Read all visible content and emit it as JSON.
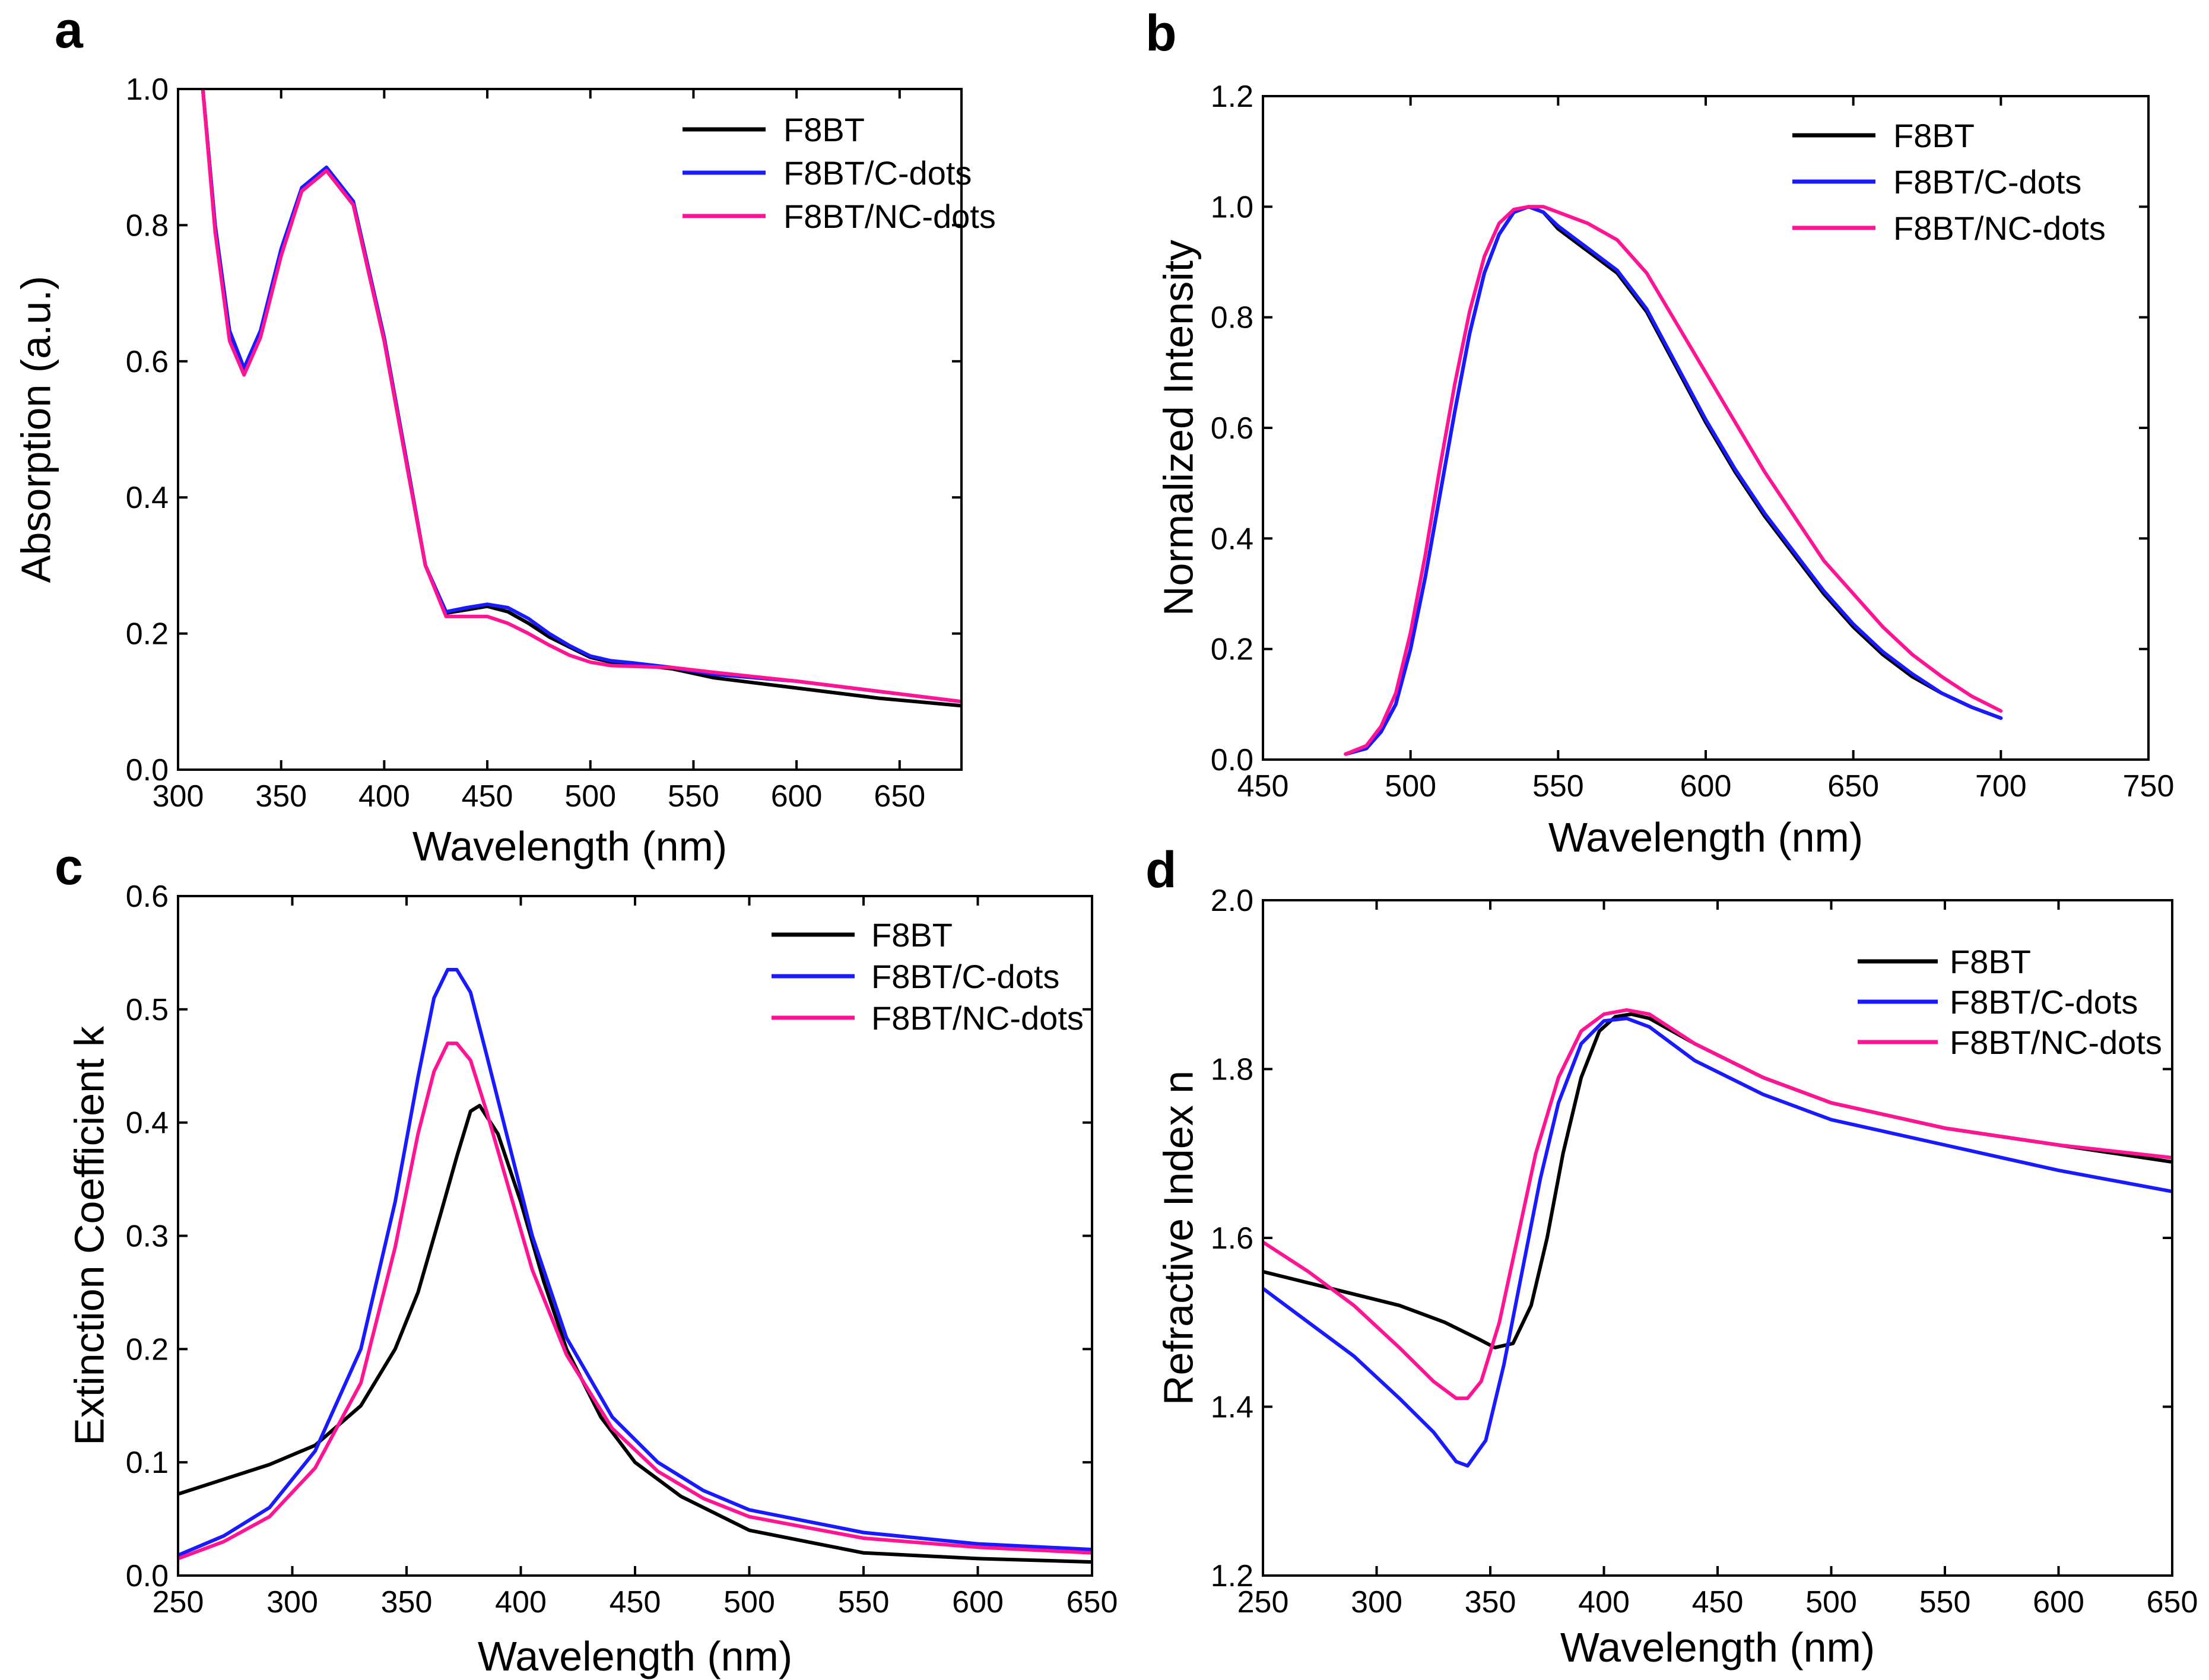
{
  "chart_data": [
    {
      "panel": "a",
      "type": "line",
      "xlabel": "Wavelength (nm)",
      "ylabel": "Absorption (a.u.)",
      "xlim": [
        300,
        680
      ],
      "ylim": [
        0.0,
        1.0
      ],
      "xticks": [
        300,
        350,
        400,
        450,
        500,
        550,
        600,
        650
      ],
      "xtick_labels": [
        "300",
        "350",
        "400",
        "450",
        "500",
        "550",
        "600",
        "650"
      ],
      "yticks": [
        0.0,
        0.2,
        0.4,
        0.6,
        0.8,
        1.0
      ],
      "ytick_labels": [
        "0.0",
        "0.2",
        "0.4",
        "0.6",
        "0.8",
        "1.0"
      ],
      "legend": "top-right",
      "series": [
        {
          "name": "F8BT",
          "color": "#000000",
          "x": [
            312,
            318,
            325,
            332,
            340,
            350,
            360,
            372,
            385,
            400,
            412,
            420,
            430,
            440,
            450,
            460,
            470,
            480,
            490,
            500,
            510,
            520,
            540,
            560,
            600,
            640,
            680
          ],
          "y": [
            1.0,
            0.8,
            0.64,
            0.585,
            0.64,
            0.76,
            0.85,
            0.88,
            0.83,
            0.63,
            0.43,
            0.3,
            0.23,
            0.235,
            0.24,
            0.232,
            0.215,
            0.195,
            0.18,
            0.165,
            0.158,
            0.155,
            0.148,
            0.135,
            0.12,
            0.105,
            0.094
          ]
        },
        {
          "name": "F8BT/C-dots",
          "color": "#1a1aff",
          "x": [
            312,
            318,
            325,
            332,
            340,
            350,
            360,
            372,
            385,
            400,
            412,
            420,
            430,
            440,
            450,
            460,
            470,
            480,
            490,
            500,
            510,
            520,
            540,
            560,
            600,
            640,
            680
          ],
          "y": [
            1.0,
            0.8,
            0.645,
            0.59,
            0.645,
            0.765,
            0.855,
            0.885,
            0.835,
            0.635,
            0.435,
            0.3,
            0.232,
            0.238,
            0.243,
            0.238,
            0.222,
            0.2,
            0.182,
            0.167,
            0.16,
            0.157,
            0.15,
            0.14,
            0.13,
            0.115,
            0.1
          ]
        },
        {
          "name": "F8BT/NC-dots",
          "color": "#ff1493",
          "x": [
            312,
            318,
            325,
            332,
            340,
            350,
            360,
            372,
            385,
            400,
            412,
            420,
            430,
            440,
            450,
            460,
            470,
            480,
            490,
            500,
            510,
            520,
            540,
            560,
            600,
            640,
            680
          ],
          "y": [
            1.0,
            0.79,
            0.63,
            0.58,
            0.635,
            0.755,
            0.85,
            0.88,
            0.83,
            0.63,
            0.43,
            0.3,
            0.225,
            0.225,
            0.225,
            0.215,
            0.2,
            0.183,
            0.168,
            0.158,
            0.153,
            0.152,
            0.15,
            0.143,
            0.13,
            0.115,
            0.1
          ]
        }
      ]
    },
    {
      "panel": "b",
      "type": "line",
      "xlabel": "Wavelength (nm)",
      "ylabel": "Normalized Intensity",
      "xlim": [
        450,
        750
      ],
      "ylim": [
        0.0,
        1.2
      ],
      "xticks": [
        450,
        500,
        550,
        600,
        650,
        700,
        750
      ],
      "xtick_labels": [
        "450",
        "500",
        "550",
        "600",
        "650",
        "700",
        "750"
      ],
      "yticks": [
        0.0,
        0.2,
        0.4,
        0.6,
        0.8,
        1.0,
        1.2
      ],
      "ytick_labels": [
        "0.0",
        "0.2",
        "0.4",
        "0.6",
        "0.8",
        "1.0",
        "1.2"
      ],
      "legend": "top-right",
      "series": [
        {
          "name": "F8BT",
          "color": "#000000",
          "x": [
            478,
            485,
            490,
            495,
            500,
            505,
            510,
            515,
            520,
            525,
            530,
            535,
            540,
            545,
            550,
            560,
            570,
            580,
            590,
            600,
            610,
            620,
            630,
            640,
            650,
            660,
            670,
            680,
            690,
            700
          ],
          "y": [
            0.01,
            0.02,
            0.05,
            0.1,
            0.2,
            0.33,
            0.48,
            0.63,
            0.77,
            0.88,
            0.95,
            0.99,
            1.0,
            0.99,
            0.96,
            0.92,
            0.88,
            0.81,
            0.71,
            0.61,
            0.52,
            0.44,
            0.37,
            0.3,
            0.24,
            0.19,
            0.15,
            0.12,
            0.095,
            0.075
          ]
        },
        {
          "name": "F8BT/C-dots",
          "color": "#1a1aff",
          "x": [
            478,
            485,
            490,
            495,
            500,
            505,
            510,
            515,
            520,
            525,
            530,
            535,
            540,
            545,
            550,
            560,
            570,
            580,
            590,
            600,
            610,
            620,
            630,
            640,
            650,
            660,
            670,
            680,
            690,
            700
          ],
          "y": [
            0.01,
            0.02,
            0.05,
            0.1,
            0.2,
            0.33,
            0.48,
            0.63,
            0.77,
            0.88,
            0.95,
            0.99,
            1.0,
            0.99,
            0.965,
            0.925,
            0.885,
            0.815,
            0.715,
            0.615,
            0.525,
            0.445,
            0.375,
            0.305,
            0.245,
            0.195,
            0.155,
            0.12,
            0.095,
            0.075
          ]
        },
        {
          "name": "F8BT/NC-dots",
          "color": "#ff1493",
          "x": [
            478,
            485,
            490,
            495,
            500,
            505,
            510,
            515,
            520,
            525,
            530,
            535,
            540,
            545,
            550,
            560,
            570,
            580,
            590,
            600,
            610,
            620,
            630,
            640,
            650,
            660,
            670,
            680,
            690,
            700
          ],
          "y": [
            0.01,
            0.025,
            0.06,
            0.12,
            0.23,
            0.37,
            0.53,
            0.68,
            0.81,
            0.91,
            0.97,
            0.995,
            1.0,
            1.0,
            0.99,
            0.97,
            0.94,
            0.88,
            0.79,
            0.7,
            0.61,
            0.52,
            0.44,
            0.36,
            0.3,
            0.24,
            0.19,
            0.15,
            0.115,
            0.088
          ]
        }
      ]
    },
    {
      "panel": "c",
      "type": "line",
      "xlabel": "Wavelength (nm)",
      "ylabel": "Extinction Coefficient k",
      "xlim": [
        250,
        650
      ],
      "ylim": [
        0.0,
        0.6
      ],
      "xticks": [
        250,
        300,
        350,
        400,
        450,
        500,
        550,
        600,
        650
      ],
      "xtick_labels": [
        "250",
        "300",
        "350",
        "400",
        "450",
        "500",
        "550",
        "600",
        "650"
      ],
      "yticks": [
        0.0,
        0.1,
        0.2,
        0.3,
        0.4,
        0.5,
        0.6
      ],
      "ytick_labels": [
        "0.0",
        "0.1",
        "0.2",
        "0.3",
        "0.4",
        "0.5",
        "0.6"
      ],
      "legend": "top-right",
      "series": [
        {
          "name": "F8BT",
          "color": "#000000",
          "x": [
            250,
            270,
            290,
            310,
            330,
            345,
            355,
            365,
            372,
            378,
            382,
            390,
            400,
            410,
            420,
            435,
            450,
            470,
            500,
            550,
            600,
            650
          ],
          "y": [
            0.072,
            0.085,
            0.098,
            0.115,
            0.15,
            0.2,
            0.25,
            0.32,
            0.37,
            0.41,
            0.415,
            0.39,
            0.33,
            0.26,
            0.2,
            0.14,
            0.1,
            0.07,
            0.04,
            0.02,
            0.015,
            0.012
          ]
        },
        {
          "name": "F8BT/C-dots",
          "color": "#1a1aff",
          "x": [
            250,
            270,
            290,
            310,
            330,
            345,
            355,
            362,
            368,
            372,
            378,
            385,
            395,
            405,
            420,
            440,
            460,
            480,
            500,
            550,
            600,
            650
          ],
          "y": [
            0.018,
            0.035,
            0.06,
            0.11,
            0.2,
            0.33,
            0.44,
            0.51,
            0.535,
            0.535,
            0.515,
            0.46,
            0.38,
            0.3,
            0.21,
            0.14,
            0.1,
            0.075,
            0.058,
            0.038,
            0.028,
            0.023
          ]
        },
        {
          "name": "F8BT/NC-dots",
          "color": "#ff1493",
          "x": [
            250,
            270,
            290,
            310,
            330,
            345,
            355,
            362,
            368,
            372,
            378,
            385,
            395,
            405,
            420,
            440,
            460,
            480,
            500,
            550,
            600,
            650
          ],
          "y": [
            0.015,
            0.03,
            0.052,
            0.095,
            0.17,
            0.29,
            0.39,
            0.445,
            0.47,
            0.47,
            0.455,
            0.41,
            0.34,
            0.27,
            0.195,
            0.13,
            0.092,
            0.068,
            0.052,
            0.033,
            0.025,
            0.02
          ]
        }
      ]
    },
    {
      "panel": "d",
      "type": "line",
      "xlabel": "Wavelength (nm)",
      "ylabel": "Refractive Index n",
      "xlim": [
        250,
        650
      ],
      "ylim": [
        1.2,
        2.0
      ],
      "xticks": [
        250,
        300,
        350,
        400,
        450,
        500,
        550,
        600,
        650
      ],
      "xtick_labels": [
        "250",
        "300",
        "350",
        "400",
        "450",
        "500",
        "550",
        "600",
        "650"
      ],
      "yticks": [
        1.2,
        1.4,
        1.6,
        1.8,
        2.0
      ],
      "ytick_labels": [
        "1.2",
        "1.4",
        "1.6",
        "1.8",
        "2.0"
      ],
      "legend": "top-right",
      "series": [
        {
          "name": "F8BT",
          "color": "#000000",
          "x": [
            250,
            280,
            310,
            330,
            345,
            352,
            360,
            368,
            375,
            382,
            390,
            398,
            405,
            412,
            420,
            440,
            470,
            500,
            550,
            600,
            650
          ],
          "y": [
            1.56,
            1.54,
            1.52,
            1.5,
            1.48,
            1.47,
            1.475,
            1.52,
            1.6,
            1.7,
            1.79,
            1.845,
            1.862,
            1.865,
            1.86,
            1.83,
            1.79,
            1.76,
            1.73,
            1.71,
            1.69
          ]
        },
        {
          "name": "F8BT/C-dots",
          "color": "#1a1aff",
          "x": [
            250,
            270,
            290,
            310,
            325,
            335,
            340,
            348,
            356,
            364,
            372,
            380,
            390,
            400,
            410,
            420,
            440,
            470,
            500,
            550,
            600,
            650
          ],
          "y": [
            1.54,
            1.5,
            1.46,
            1.41,
            1.37,
            1.335,
            1.33,
            1.36,
            1.45,
            1.56,
            1.67,
            1.76,
            1.83,
            1.857,
            1.86,
            1.85,
            1.81,
            1.77,
            1.74,
            1.71,
            1.68,
            1.655
          ]
        },
        {
          "name": "F8BT/NC-dots",
          "color": "#ff1493",
          "x": [
            250,
            270,
            290,
            310,
            325,
            335,
            340,
            346,
            354,
            362,
            370,
            380,
            390,
            400,
            410,
            420,
            440,
            470,
            500,
            550,
            600,
            650
          ],
          "y": [
            1.595,
            1.56,
            1.52,
            1.47,
            1.43,
            1.41,
            1.41,
            1.43,
            1.5,
            1.6,
            1.7,
            1.79,
            1.845,
            1.865,
            1.87,
            1.865,
            1.83,
            1.79,
            1.76,
            1.73,
            1.71,
            1.695
          ]
        }
      ]
    }
  ]
}
